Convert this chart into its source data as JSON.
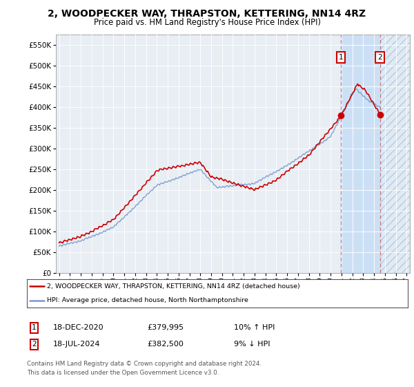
{
  "title": "2, WOODPECKER WAY, THRAPSTON, KETTERING, NN14 4RZ",
  "subtitle": "Price paid vs. HM Land Registry's House Price Index (HPI)",
  "ylim": [
    0,
    575000
  ],
  "yticks": [
    0,
    50000,
    100000,
    150000,
    200000,
    250000,
    300000,
    350000,
    400000,
    450000,
    500000,
    550000
  ],
  "background_color": "#ffffff",
  "plot_bg_color": "#e8eef4",
  "grid_color": "#ffffff",
  "red_line_color": "#cc0000",
  "blue_line_color": "#7799cc",
  "between_shade_color": "#cce0f5",
  "dashed_line_color": "#cc6666",
  "marker1_date": "18-DEC-2020",
  "marker1_price": 379995,
  "marker1_hpi_pct": "10% ↑ HPI",
  "marker2_date": "18-JUL-2024",
  "marker2_price": 382500,
  "marker2_hpi_pct": "9% ↓ HPI",
  "legend_line1": "2, WOODPECKER WAY, THRAPSTON, KETTERING, NN14 4RZ (detached house)",
  "legend_line2": "HPI: Average price, detached house, North Northamptonshire",
  "footer_line1": "Contains HM Land Registry data © Crown copyright and database right 2024.",
  "footer_line2": "This data is licensed under the Open Government Licence v3.0.",
  "marker1_x_year": 2020.958,
  "marker2_x_year": 2024.542,
  "xmin": 1994.7,
  "xmax": 2027.3
}
